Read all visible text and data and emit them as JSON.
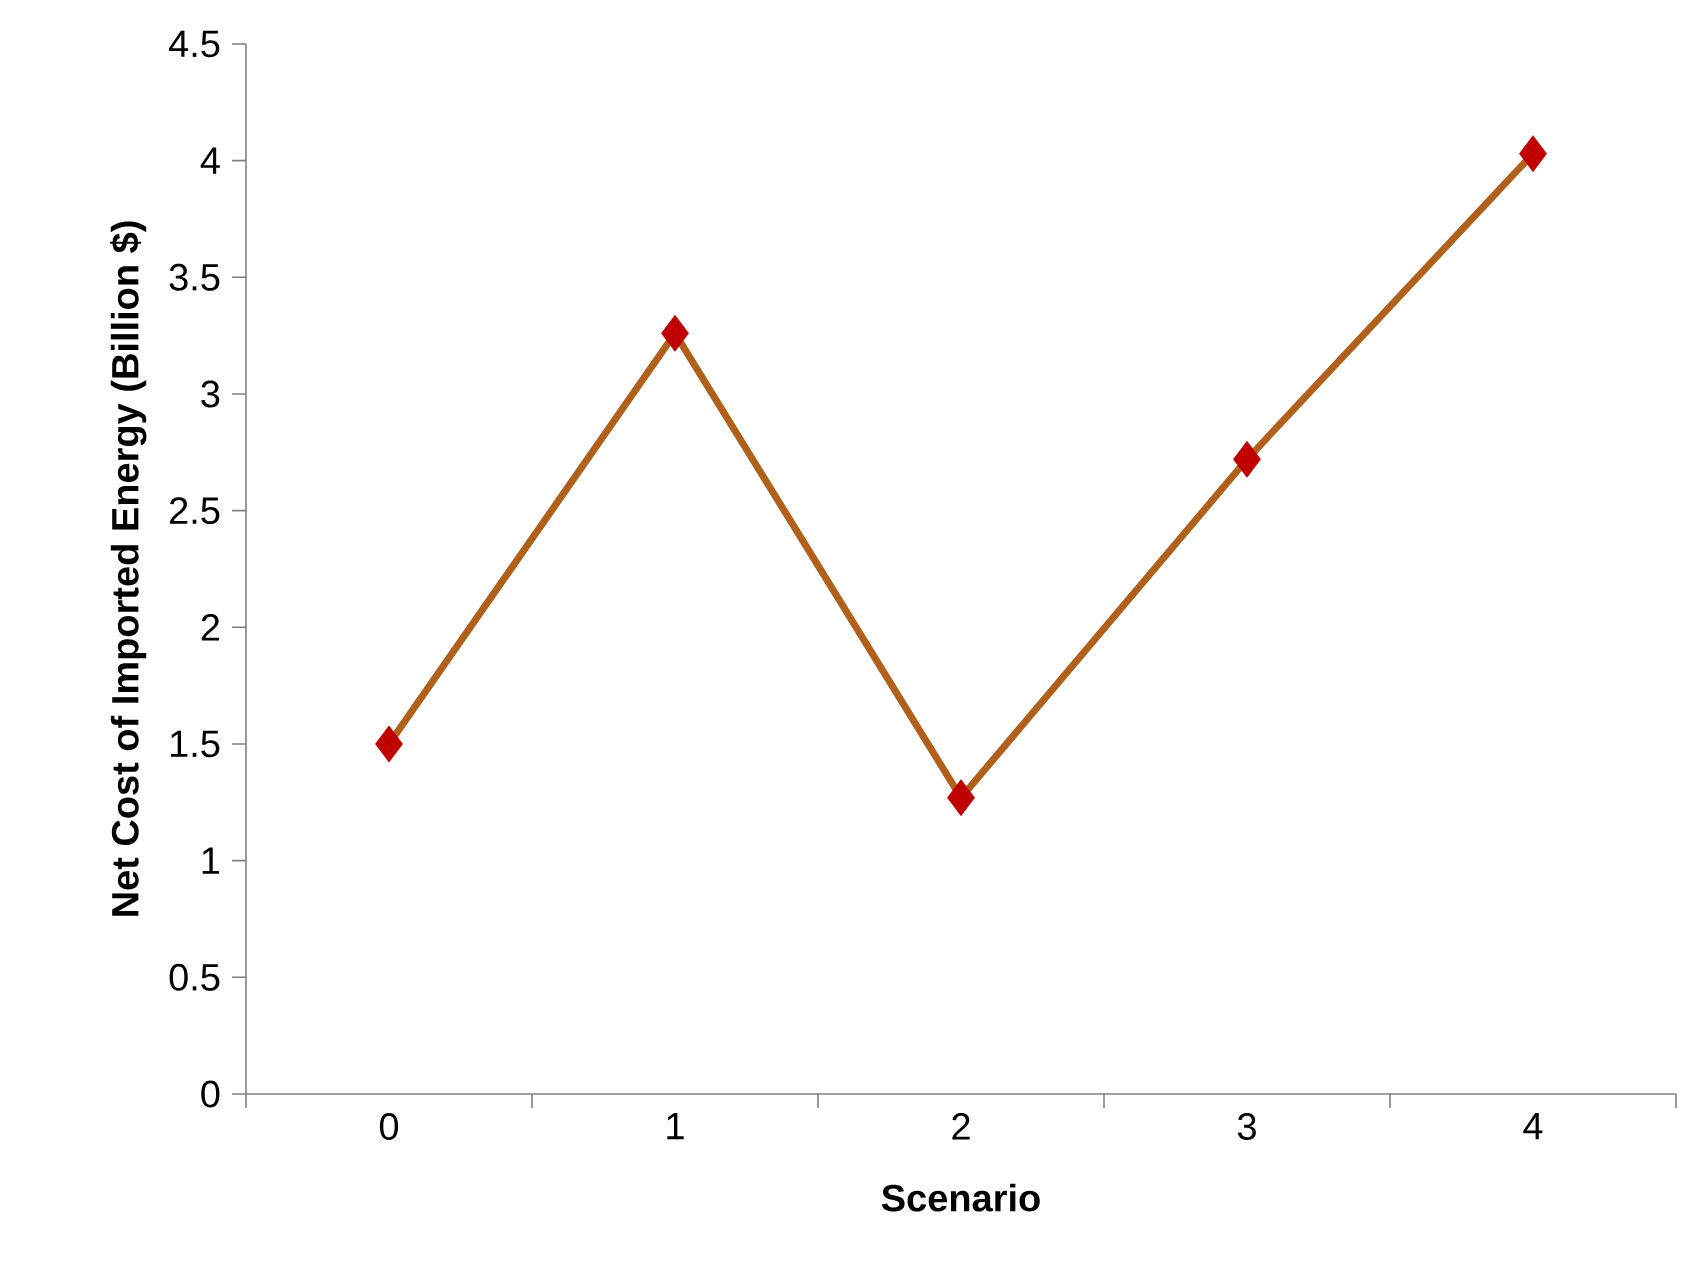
{
  "chart_data": {
    "type": "line",
    "xlabel": "Scenario",
    "ylabel": "Net Cost of Imported Energy (Billion $)",
    "categories": [
      "0",
      "1",
      "2",
      "3",
      "4"
    ],
    "series": [
      {
        "color": "#b0601a",
        "colors": [
          "#c00000",
          "#c00000",
          "#c00000",
          "#c00000",
          "#c00000"
        ],
        "values": [
          1.5,
          3.26,
          1.27,
          2.72,
          4.03
        ]
      }
    ],
    "ylim": [
      0,
      4.5
    ],
    "yticks": [
      0,
      0.5,
      1,
      1.5,
      2,
      2.5,
      3,
      3.5,
      4,
      4.5
    ],
    "grid": false,
    "marker": "diamond",
    "line_style": "solid"
  }
}
